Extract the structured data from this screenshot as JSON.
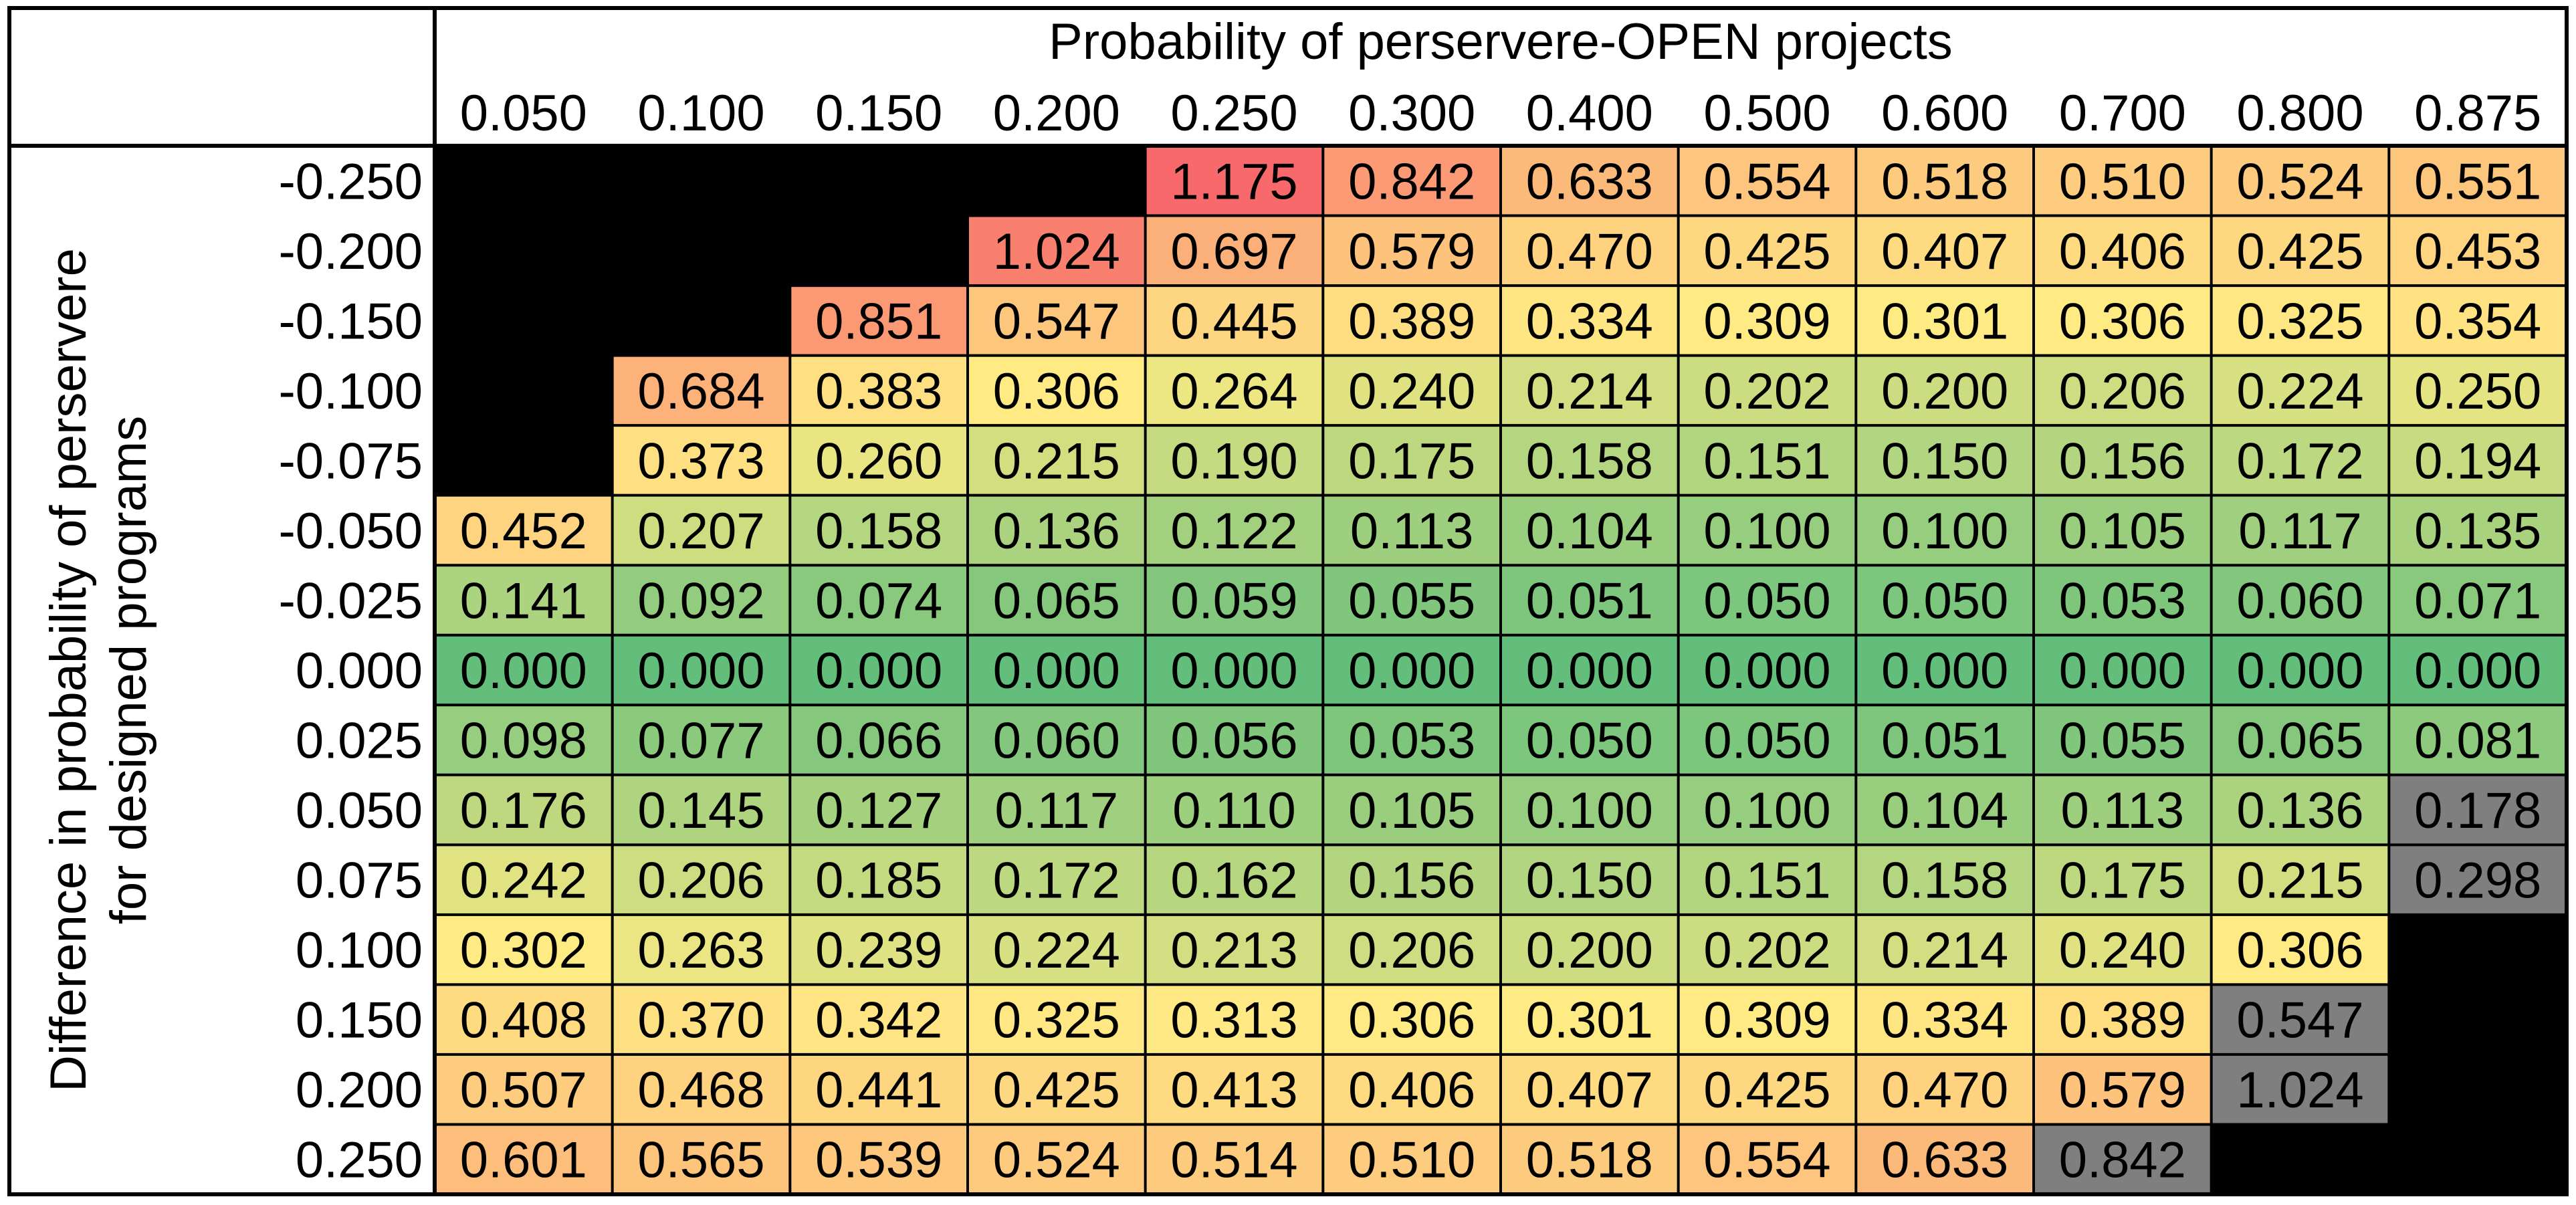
{
  "chart_data": {
    "type": "heatmap",
    "title": "Probability of perservere-OPEN projects",
    "ylabel": "Difference in probability of perservere for designed programs",
    "ylabel_lines": [
      "Difference in probability of perservere",
      "for designed programs"
    ],
    "x_categories": [
      "0.050",
      "0.100",
      "0.150",
      "0.200",
      "0.250",
      "0.300",
      "0.400",
      "0.500",
      "0.600",
      "0.700",
      "0.800",
      "0.875"
    ],
    "y_categories": [
      "-0.250",
      "-0.200",
      "-0.150",
      "-0.100",
      "-0.075",
      "-0.050",
      "-0.025",
      "0.000",
      "0.025",
      "0.050",
      "0.075",
      "0.100",
      "0.150",
      "0.200",
      "0.250"
    ],
    "values": [
      [
        null,
        null,
        null,
        null,
        1.175,
        0.842,
        0.633,
        0.554,
        0.518,
        0.51,
        0.524,
        0.551
      ],
      [
        null,
        null,
        null,
        1.024,
        0.697,
        0.579,
        0.47,
        0.425,
        0.407,
        0.406,
        0.425,
        0.453
      ],
      [
        null,
        null,
        0.851,
        0.547,
        0.445,
        0.389,
        0.334,
        0.309,
        0.301,
        0.306,
        0.325,
        0.354
      ],
      [
        null,
        0.684,
        0.383,
        0.306,
        0.264,
        0.24,
        0.214,
        0.202,
        0.2,
        0.206,
        0.224,
        0.25
      ],
      [
        null,
        0.373,
        0.26,
        0.215,
        0.19,
        0.175,
        0.158,
        0.151,
        0.15,
        0.156,
        0.172,
        0.194
      ],
      [
        0.452,
        0.207,
        0.158,
        0.136,
        0.122,
        0.113,
        0.104,
        0.1,
        0.1,
        0.105,
        0.117,
        0.135
      ],
      [
        0.141,
        0.092,
        0.074,
        0.065,
        0.059,
        0.055,
        0.051,
        0.05,
        0.05,
        0.053,
        0.06,
        0.071
      ],
      [
        0.0,
        0.0,
        0.0,
        0.0,
        0.0,
        0.0,
        0.0,
        0.0,
        0.0,
        0.0,
        0.0,
        0.0
      ],
      [
        0.098,
        0.077,
        0.066,
        0.06,
        0.056,
        0.053,
        0.05,
        0.05,
        0.051,
        0.055,
        0.065,
        0.081
      ],
      [
        0.176,
        0.145,
        0.127,
        0.117,
        0.11,
        0.105,
        0.1,
        0.1,
        0.104,
        0.113,
        0.136,
        0.178
      ],
      [
        0.242,
        0.206,
        0.185,
        0.172,
        0.162,
        0.156,
        0.15,
        0.151,
        0.158,
        0.175,
        0.215,
        0.298
      ],
      [
        0.302,
        0.263,
        0.239,
        0.224,
        0.213,
        0.206,
        0.2,
        0.202,
        0.214,
        0.24,
        0.306,
        null
      ],
      [
        0.408,
        0.37,
        0.342,
        0.325,
        0.313,
        0.306,
        0.301,
        0.309,
        0.334,
        0.389,
        0.547,
        null
      ],
      [
        0.507,
        0.468,
        0.441,
        0.425,
        0.413,
        0.406,
        0.407,
        0.425,
        0.47,
        0.579,
        1.024,
        null
      ],
      [
        0.601,
        0.565,
        0.539,
        0.524,
        0.514,
        0.51,
        0.518,
        0.554,
        0.633,
        0.842,
        null,
        null
      ]
    ],
    "gray_cells": [
      [
        9,
        11
      ],
      [
        10,
        11
      ],
      [
        12,
        10
      ],
      [
        13,
        10
      ],
      [
        14,
        9
      ]
    ],
    "colors": {
      "missing": "#000000",
      "gray": "#7f7f7f",
      "scale_low": "#63be7b",
      "scale_mid": "#ffeb84",
      "scale_high": "#f8696b"
    },
    "color_scale_range": [
      0,
      0.3,
      1.175
    ]
  }
}
